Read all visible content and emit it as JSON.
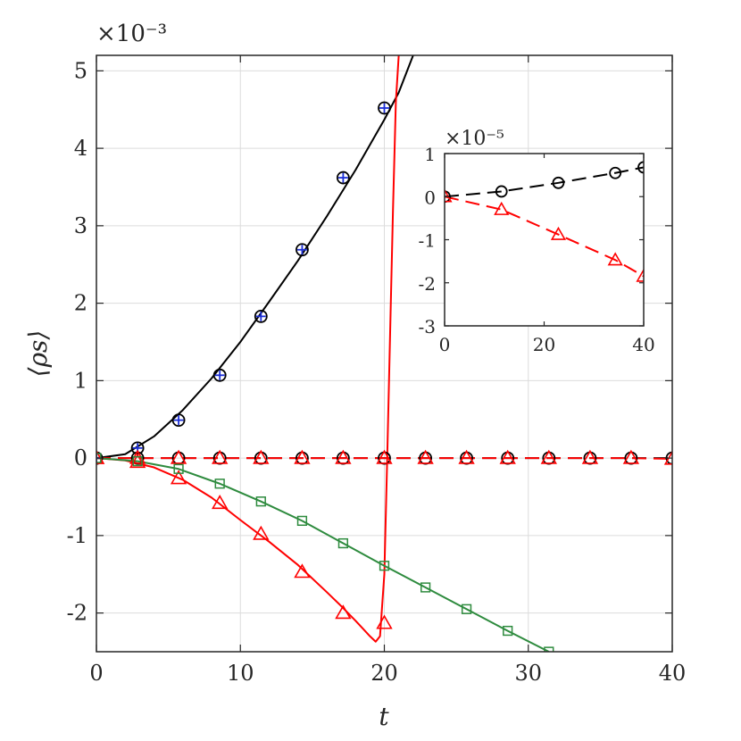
{
  "chart_data": [
    {
      "type": "line",
      "title": "",
      "xlabel": "t",
      "ylabel": "⟨ρs⟩",
      "xlim": [
        0,
        40
      ],
      "ylim": [
        -2.5,
        5.2
      ],
      "y_multiplier": "×10⁻³",
      "grid": true,
      "xticks": [
        "0",
        "10",
        "20",
        "30",
        "40"
      ],
      "yticks": [
        "-2",
        "-1",
        "0",
        "1",
        "2",
        "3",
        "4",
        "5"
      ],
      "series": [
        {
          "color": "#000000",
          "line": "solid",
          "x": [
            0,
            2,
            4,
            6,
            8,
            10,
            12,
            14,
            16,
            18,
            20,
            21,
            22
          ],
          "y": [
            0,
            0.05,
            0.28,
            0.62,
            1.03,
            1.5,
            2.02,
            2.55,
            3.12,
            3.72,
            4.37,
            4.72,
            5.2
          ]
        },
        {
          "color": "#000000",
          "marker": "circle-plus",
          "marker_color": "#1c2fd6",
          "x": [
            0,
            2.86,
            5.71,
            8.57,
            11.43,
            14.29,
            17.14,
            20
          ],
          "y": [
            0,
            0.13,
            0.49,
            1.07,
            1.83,
            2.69,
            3.62,
            4.52
          ]
        },
        {
          "color": "#000000",
          "line": "dashed",
          "marker": "circle",
          "x": [
            0,
            2.86,
            5.71,
            8.57,
            11.43,
            14.29,
            17.14,
            20,
            22.86,
            25.71,
            28.57,
            31.43,
            34.29,
            37.14,
            40
          ],
          "y": [
            0,
            0,
            0,
            0,
            0,
            0,
            0,
            0,
            0,
            0,
            0,
            0,
            0,
            0,
            0
          ]
        },
        {
          "color": "#ff0000",
          "line": "dashed",
          "marker": "triangle",
          "x": [
            0,
            2.86,
            5.71,
            8.57,
            11.43,
            14.29,
            17.14,
            20,
            22.86,
            25.71,
            28.57,
            31.43,
            34.29,
            37.14,
            40
          ],
          "y": [
            0,
            0,
            0,
            0,
            0,
            0,
            0,
            0,
            0,
            0,
            0,
            0,
            0,
            0,
            -0.01
          ]
        },
        {
          "color": "#ff0000",
          "line": "solid",
          "x": [
            0,
            2,
            4,
            6,
            8,
            10,
            12,
            14,
            16,
            17,
            18,
            18.5,
            19,
            19.4,
            19.7,
            20,
            20.2,
            20.4,
            20.6,
            20.8,
            21
          ],
          "y": [
            0,
            -0.03,
            -0.12,
            -0.28,
            -0.51,
            -0.8,
            -1.08,
            -1.38,
            -1.73,
            -1.91,
            -2.1,
            -2.2,
            -2.3,
            -2.37,
            -2.3,
            -1.5,
            0,
            1.6,
            3.2,
            4.6,
            5.2
          ]
        },
        {
          "color": "#ff0000",
          "marker": "triangle",
          "x": [
            0,
            2.86,
            5.71,
            8.57,
            11.43,
            14.29,
            17.14,
            20
          ],
          "y": [
            0,
            -0.05,
            -0.26,
            -0.58,
            -0.98,
            -1.47,
            -2.0,
            -2.13
          ]
        },
        {
          "color": "#2e8b3e",
          "line": "solid",
          "marker": "square",
          "x": [
            0,
            2.86,
            5.71,
            8.57,
            11.43,
            14.29,
            17.14,
            20,
            22.86,
            25.71,
            28.57,
            31.43
          ],
          "y": [
            0,
            -0.04,
            -0.14,
            -0.33,
            -0.56,
            -0.81,
            -1.1,
            -1.39,
            -1.67,
            -1.95,
            -2.23,
            -2.5
          ]
        }
      ]
    },
    {
      "type": "line",
      "title": "",
      "xlim": [
        0,
        40
      ],
      "ylim": [
        -3,
        1
      ],
      "y_multiplier": "×10⁻⁵",
      "grid": false,
      "xticks": [
        "0",
        "20",
        "40"
      ],
      "yticks": [
        "-3",
        "-2",
        "-1",
        "0",
        "1"
      ],
      "series": [
        {
          "color": "#000000",
          "line": "dashed",
          "marker": "circle",
          "x": [
            0,
            11.43,
            22.86,
            34.29,
            40
          ],
          "y": [
            0,
            0.12,
            0.32,
            0.55,
            0.68
          ]
        },
        {
          "color": "#ff0000",
          "line": "dashed",
          "marker": "triangle",
          "x": [
            0,
            11.43,
            22.86,
            34.29,
            40
          ],
          "y": [
            0,
            -0.3,
            -0.88,
            -1.47,
            -1.85
          ]
        }
      ]
    }
  ]
}
